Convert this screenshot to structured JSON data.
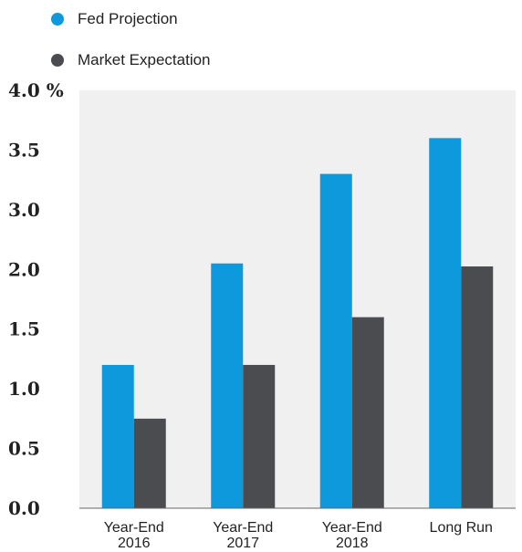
{
  "chart_data": {
    "type": "bar",
    "title": "",
    "xlabel": "",
    "ylabel": "",
    "categories": [
      "Year-End\n2016",
      "Year-End\n2017",
      "Year-End\n2018",
      "Long Run"
    ],
    "series": [
      {
        "name": "Fed Projection",
        "values": [
          1.2,
          2.1,
          3.3,
          3.6
        ],
        "color": "#0d99dc"
      },
      {
        "name": "Market Expectation",
        "values": [
          0.75,
          1.2,
          1.6,
          2.05
        ],
        "color": "#4a4c50"
      }
    ],
    "y_tick_labels": [
      "0.0",
      "0.5",
      "1.0",
      "1.5",
      "2.0",
      "3.0",
      "3.5",
      "4.0 %"
    ],
    "grid": false,
    "legend_position": "top-left",
    "plot_background": "#f0f0f0"
  }
}
